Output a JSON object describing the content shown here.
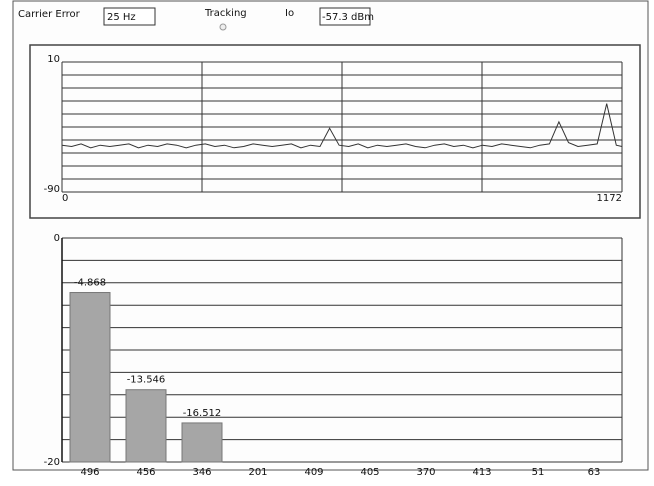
{
  "form": {
    "carrier_error_label": "Carrier Error",
    "carrier_error_value": "25 Hz",
    "tracking_label": "Tracking",
    "io_label": "Io",
    "io_value": "-57.3 dBm"
  },
  "chart_data": [
    {
      "type": "line",
      "color": "#333333",
      "x": [
        0,
        20,
        40,
        60,
        80,
        100,
        120,
        140,
        160,
        180,
        200,
        220,
        240,
        260,
        280,
        300,
        320,
        340,
        360,
        380,
        400,
        420,
        440,
        460,
        480,
        500,
        520,
        540,
        560,
        580,
        600,
        620,
        640,
        660,
        680,
        700,
        720,
        740,
        760,
        780,
        800,
        820,
        840,
        860,
        880,
        900,
        920,
        940,
        960,
        980,
        1000,
        1020,
        1040,
        1060,
        1080,
        1100,
        1120,
        1140,
        1160,
        1172
      ],
      "values": [
        -54,
        -55,
        -53,
        -56,
        -54,
        -55,
        -54,
        -53,
        -56,
        -54,
        -55,
        -53,
        -54,
        -56,
        -54,
        -53,
        -55,
        -54,
        -56,
        -55,
        -53,
        -54,
        -55,
        -54,
        -53,
        -56,
        -54,
        -55,
        -41,
        -54,
        -55,
        -53,
        -56,
        -54,
        -55,
        -54,
        -53,
        -55,
        -56,
        -54,
        -53,
        -55,
        -54,
        -56,
        -54,
        -55,
        -53,
        -54,
        -55,
        -56,
        -54,
        -53,
        -36,
        -52,
        -55,
        -54,
        -53,
        -22,
        -54,
        -55
      ],
      "xlim": [
        0,
        1172
      ],
      "xticks": [
        0,
        1172
      ],
      "xgrid": [
        0,
        293,
        586,
        879,
        1172
      ],
      "ylim": [
        -90,
        10
      ],
      "yticks": [
        -90,
        10
      ],
      "ygrid": [
        -90,
        -80,
        -70,
        -60,
        -50,
        -40,
        -30,
        -20,
        -10,
        0,
        10
      ]
    },
    {
      "type": "bar",
      "color": "#a6a6a6",
      "categories": [
        "496",
        "456",
        "346",
        "201",
        "409",
        "405",
        "370",
        "413",
        "51",
        "63"
      ],
      "values": [
        -4.868,
        -13.546,
        -16.512,
        null,
        null,
        null,
        null,
        null,
        null,
        null
      ],
      "ylim": [
        -20,
        0
      ],
      "yticks": [
        -20,
        0
      ],
      "ygrid": [
        -20,
        -18,
        -16,
        -14,
        -12,
        -10,
        -8,
        -6,
        -4,
        -2,
        0
      ]
    }
  ]
}
